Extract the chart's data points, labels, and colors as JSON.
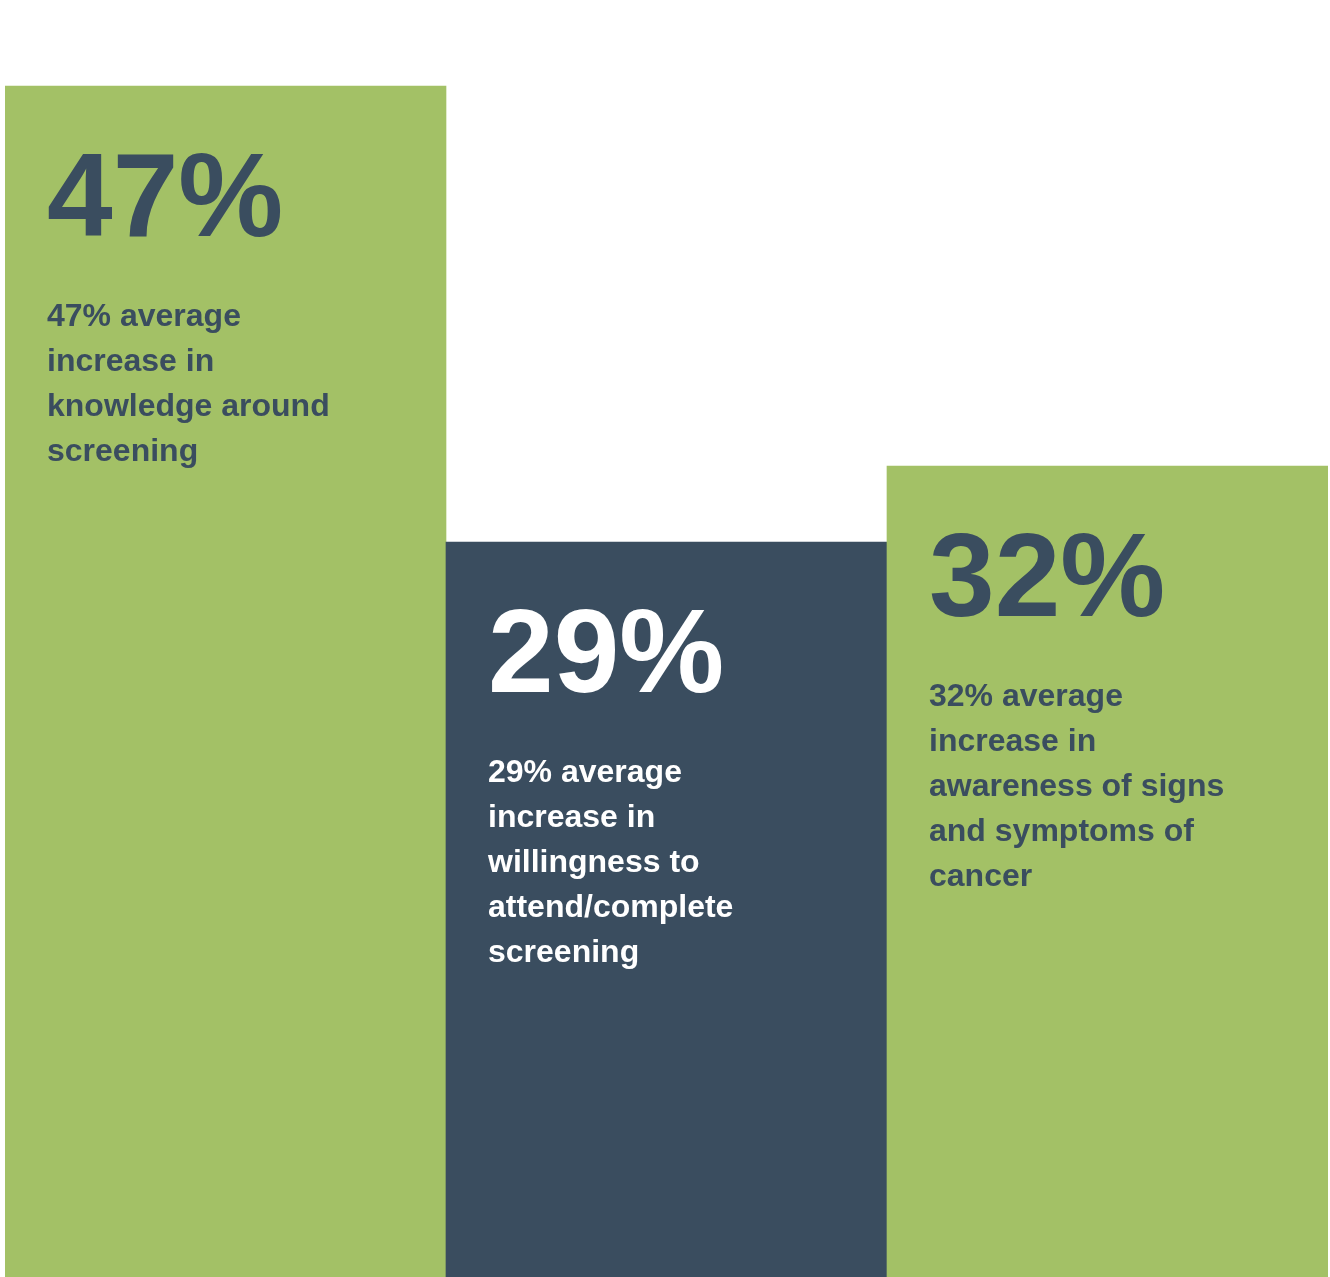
{
  "chart_data": {
    "type": "bar",
    "categories": [
      "47% average increase in knowledge around screening",
      "29% average increase in willingness to attend/complete screening",
      "32% average increase in awareness of signs and symptoms of cancer"
    ],
    "values": [
      47,
      29,
      32
    ],
    "colors": [
      "#a3c166",
      "#3a4d5f",
      "#a3c166"
    ],
    "value_labels": [
      "47%",
      "29%",
      "32%"
    ],
    "legend": false,
    "tick_labels": false
  }
}
